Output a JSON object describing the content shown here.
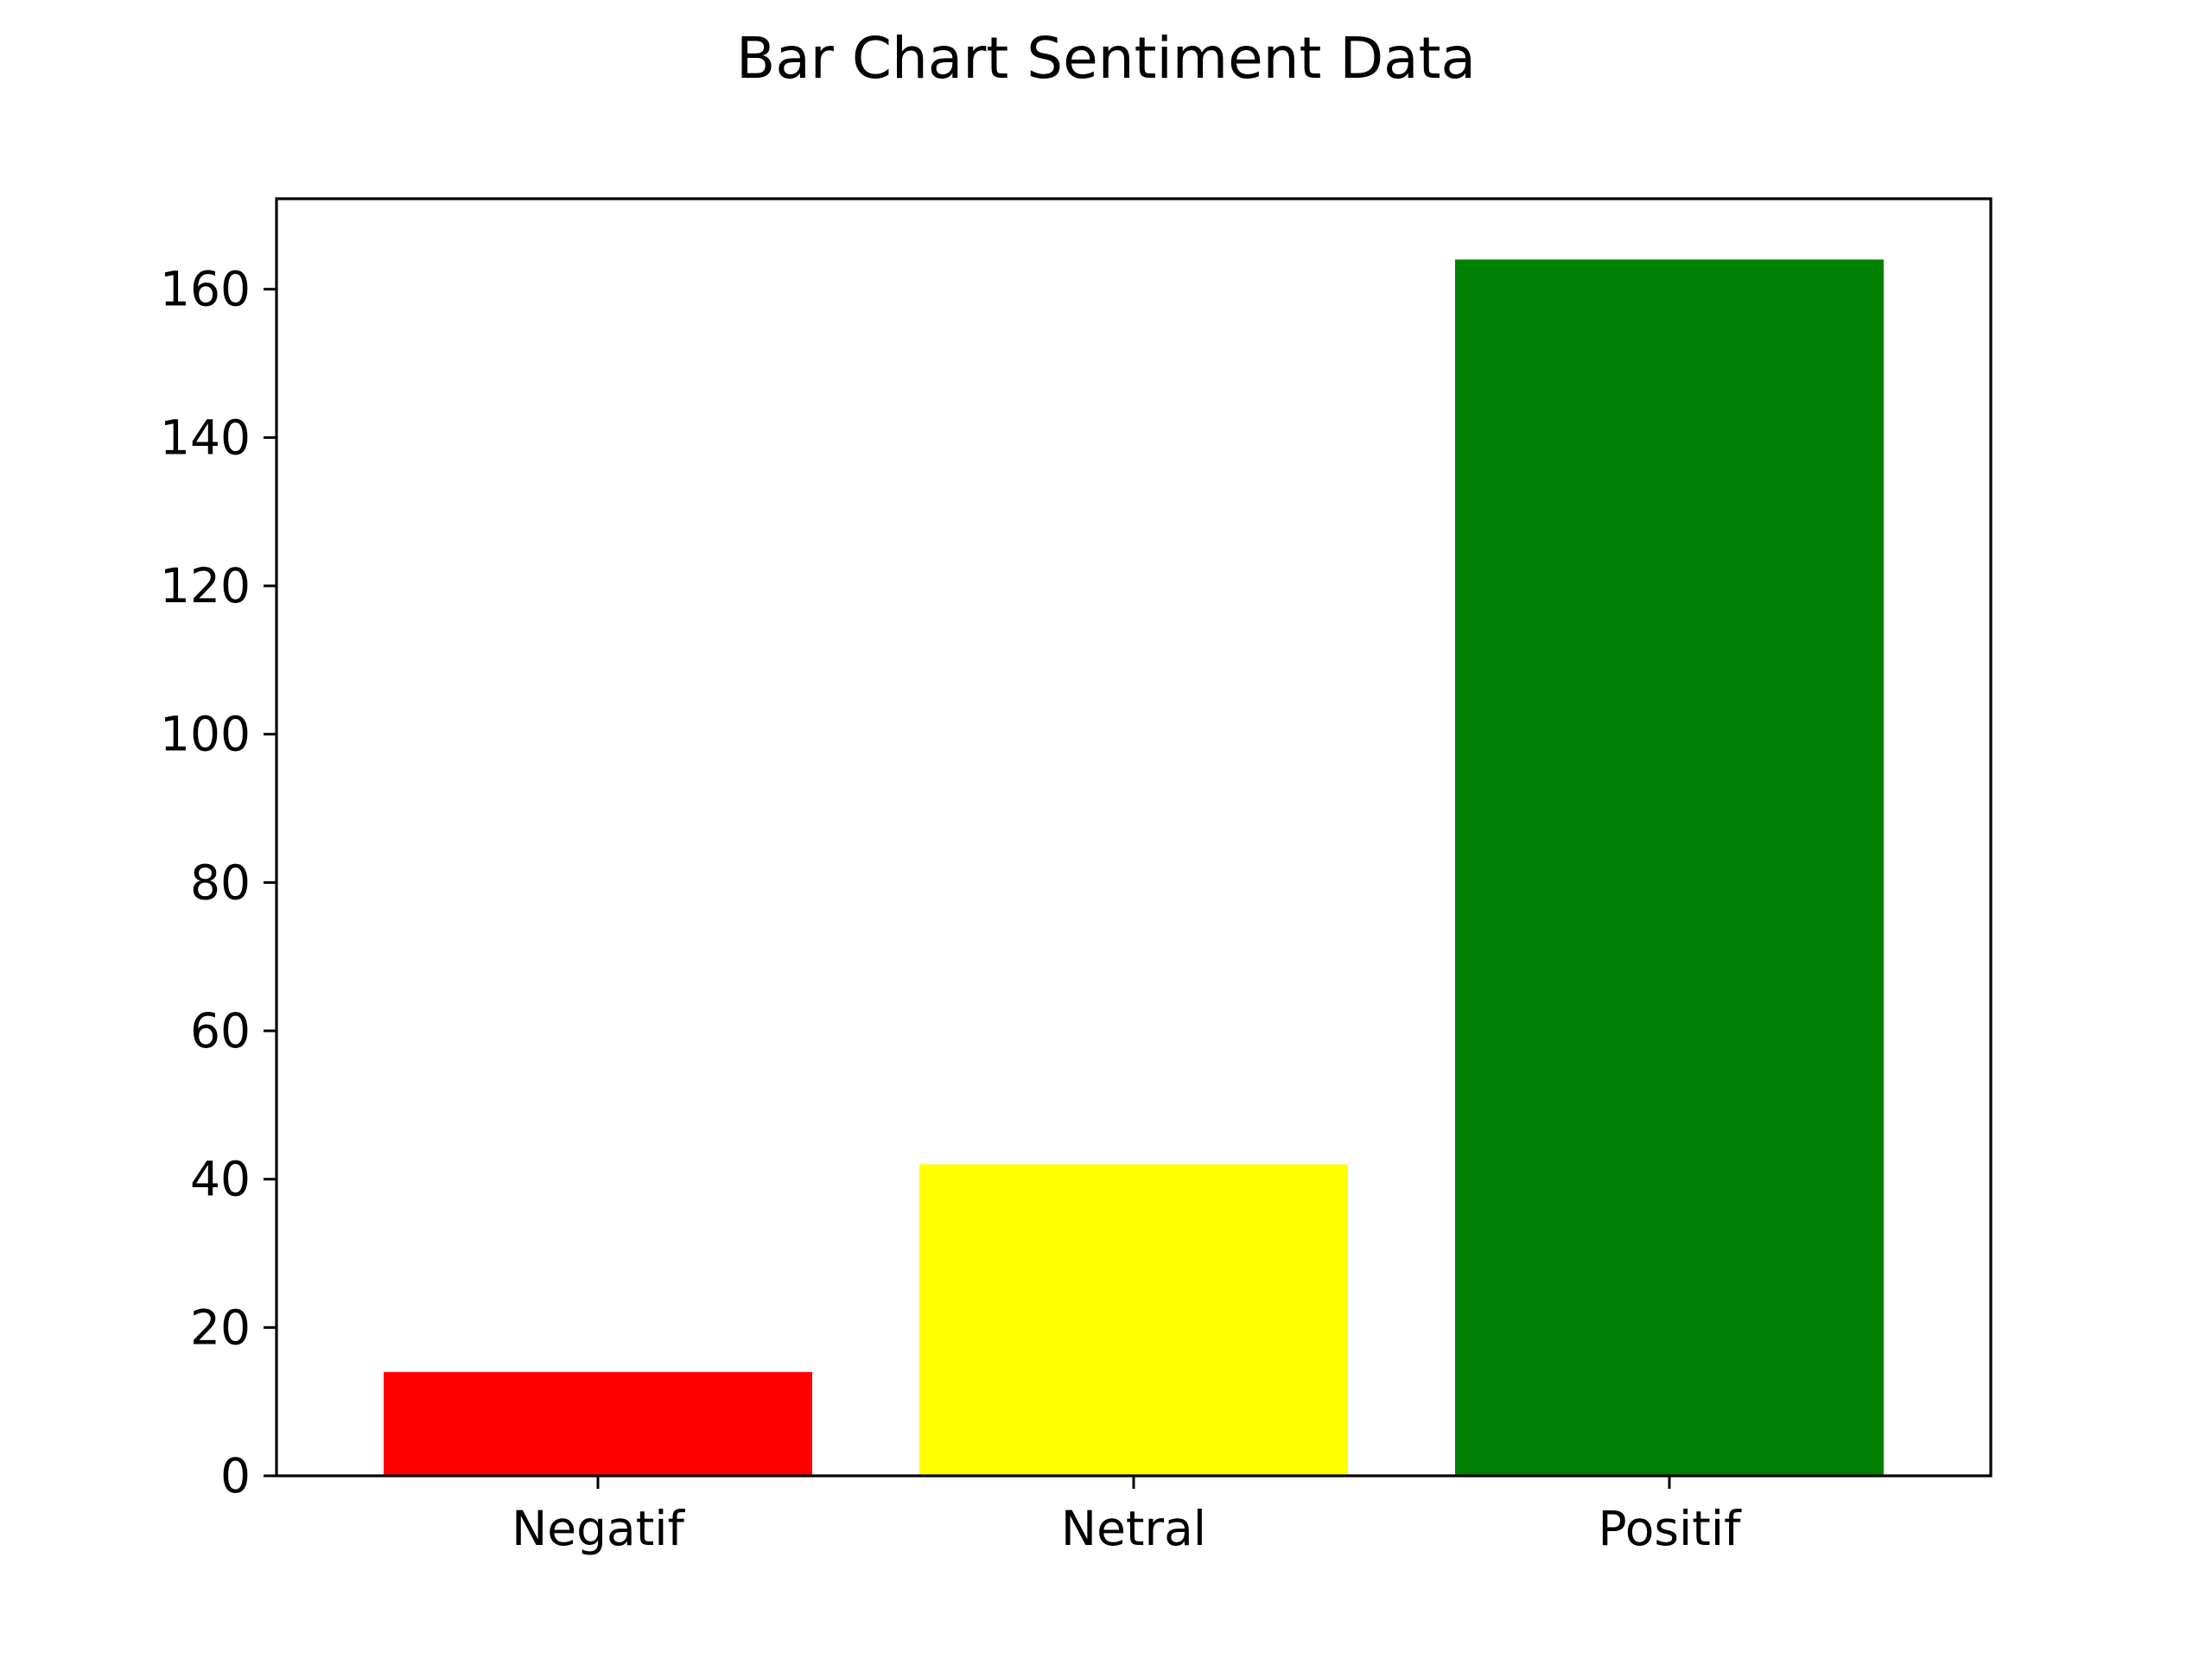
{
  "chart_data": {
    "type": "bar",
    "title": "Bar Chart Sentiment Data",
    "xlabel": "",
    "ylabel": "",
    "categories": [
      "Negatif",
      "Netral",
      "Positif"
    ],
    "values": [
      14,
      42,
      164
    ],
    "colors": [
      "#ff0000",
      "#ffff00",
      "#008000"
    ],
    "ylim": [
      0,
      172.2
    ],
    "yticks": [
      0,
      20,
      40,
      60,
      80,
      100,
      120,
      140,
      160
    ],
    "grid": false,
    "legend": "none"
  }
}
